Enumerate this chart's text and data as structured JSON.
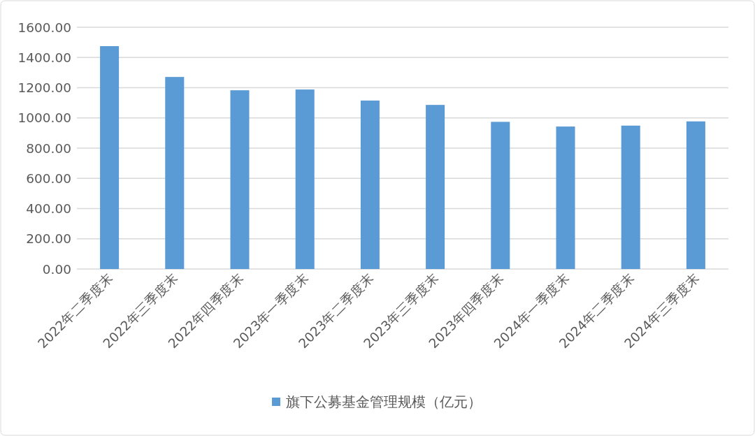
{
  "chart_data": {
    "type": "bar",
    "categories": [
      "2022年二季度末",
      "2022年三季度末",
      "2022年四季度末",
      "2023年一季度末",
      "2023年二季度末",
      "2023年三季度末",
      "2023年四季度末",
      "2024年一季度末",
      "2024年二季度末",
      "2024年三季度末"
    ],
    "series": [
      {
        "name": "旗下公募基金管理规模（亿元）",
        "color": "#5b9bd5",
        "values": [
          1475,
          1271,
          1183,
          1188,
          1115,
          1086,
          974,
          943,
          949,
          977
        ]
      }
    ],
    "ylim": [
      0,
      1600
    ],
    "yticks": [
      {
        "value": 0,
        "label": "0.00"
      },
      {
        "value": 200,
        "label": "200.00"
      },
      {
        "value": 400,
        "label": "400.00"
      },
      {
        "value": 600,
        "label": "600.00"
      },
      {
        "value": 800,
        "label": "800.00"
      },
      {
        "value": 1000,
        "label": "1000.00"
      },
      {
        "value": 1200,
        "label": "1200.00"
      },
      {
        "value": 1400,
        "label": "1400.00"
      },
      {
        "value": 1600,
        "label": "1600.00"
      }
    ],
    "grid": "y",
    "legend": "bottom"
  }
}
